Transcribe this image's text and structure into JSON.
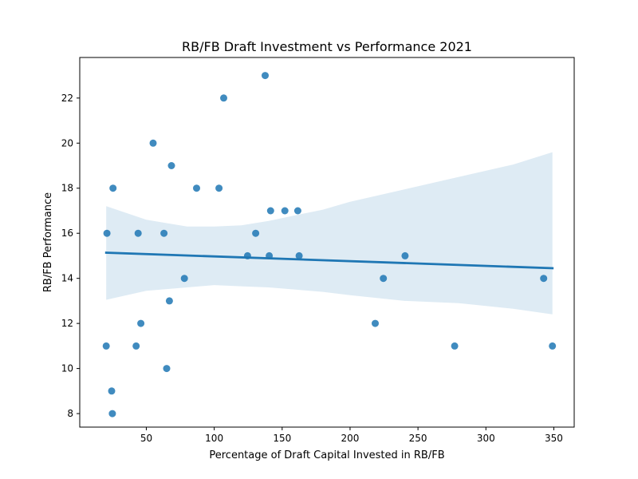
{
  "chart_data": {
    "type": "scatter",
    "title": "RB/FB Draft Investment vs Performance 2021",
    "xlabel": "Percentage of Draft Capital Invested in RB/FB",
    "ylabel": "RB/FB Performance",
    "xlim": [
      1,
      365
    ],
    "ylim": [
      7.4,
      23.8
    ],
    "xticks": [
      50,
      100,
      150,
      200,
      250,
      300,
      350
    ],
    "yticks": [
      8,
      10,
      12,
      14,
      16,
      18,
      20,
      22
    ],
    "grid": false,
    "legend": "none",
    "colors": {
      "points": "#1f77b4",
      "line": "#1f77b4",
      "band": "#1f77b4"
    },
    "series": [
      {
        "points": [
          [
            20.5,
            11
          ],
          [
            21.0,
            16
          ],
          [
            24.5,
            9
          ],
          [
            25.0,
            8
          ],
          [
            25.5,
            18
          ],
          [
            42.5,
            11
          ],
          [
            44.0,
            16
          ],
          [
            46.0,
            12
          ],
          [
            55.0,
            20
          ],
          [
            63.0,
            16
          ],
          [
            65.0,
            10
          ],
          [
            67.0,
            13
          ],
          [
            68.5,
            19
          ],
          [
            78.0,
            14
          ],
          [
            87.0,
            18
          ],
          [
            103.5,
            18
          ],
          [
            107.0,
            22
          ],
          [
            124.5,
            15
          ],
          [
            130.5,
            16
          ],
          [
            137.5,
            23
          ],
          [
            140.5,
            15
          ],
          [
            141.5,
            17
          ],
          [
            152.0,
            17
          ],
          [
            161.5,
            17
          ],
          [
            162.5,
            15
          ],
          [
            218.5,
            12
          ],
          [
            224.5,
            14
          ],
          [
            240.5,
            15
          ],
          [
            277.0,
            11
          ],
          [
            342.5,
            14
          ],
          [
            349.0,
            11
          ]
        ]
      }
    ],
    "regression": {
      "x": [
        20.5,
        349.0
      ],
      "y": [
        15.14,
        14.45
      ]
    },
    "confidence_band": {
      "x": [
        20.5,
        50,
        80,
        100,
        120,
        140,
        160,
        180,
        200,
        240,
        280,
        320,
        349.0
      ],
      "upper": [
        17.2,
        16.6,
        16.3,
        16.3,
        16.35,
        16.55,
        16.8,
        17.05,
        17.4,
        17.95,
        18.5,
        19.05,
        19.6
      ],
      "lower": [
        13.05,
        13.45,
        13.6,
        13.7,
        13.65,
        13.6,
        13.5,
        13.4,
        13.25,
        13.0,
        12.9,
        12.65,
        12.4
      ]
    }
  }
}
